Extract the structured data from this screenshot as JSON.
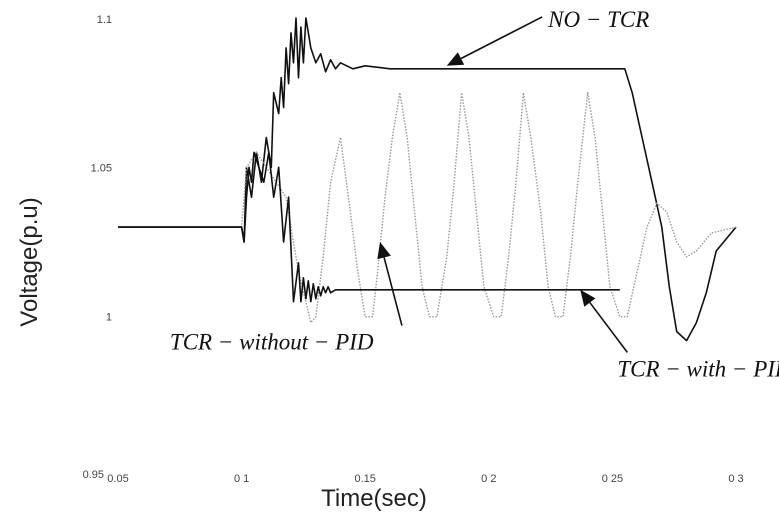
{
  "chart_data": {
    "type": "line",
    "title": "",
    "xlabel": "Time(sec)",
    "ylabel": "Voltage(p.u)",
    "xlim": [
      0.05,
      0.3
    ],
    "ylim": [
      0.95,
      1.1
    ],
    "grid": false,
    "legend": "none",
    "x_ticks": [
      {
        "value": 0.05,
        "label": "0.05"
      },
      {
        "value": 0.1,
        "label": "0 1"
      },
      {
        "value": 0.15,
        "label": "0.15"
      },
      {
        "value": 0.2,
        "label": "0 2"
      },
      {
        "value": 0.25,
        "label": "0 25"
      },
      {
        "value": 0.3,
        "label": "0 3"
      }
    ],
    "y_ticks": [
      {
        "value": 0.95,
        "label": "0.95"
      },
      {
        "value": 1.0,
        "label": "1"
      },
      {
        "value": 1.05,
        "label": "1.05"
      },
      {
        "value": 1.1,
        "label": "1.1"
      }
    ],
    "series": [
      {
        "color": "#111111",
        "style": "solid",
        "x": [
          0.05,
          0.1,
          0.101,
          0.102,
          0.104,
          0.106,
          0.108,
          0.11,
          0.112,
          0.113,
          0.115,
          0.116,
          0.117,
          0.118,
          0.119,
          0.12,
          0.121,
          0.122,
          0.123,
          0.124,
          0.125,
          0.126,
          0.128,
          0.13,
          0.132,
          0.134,
          0.136,
          0.138,
          0.14,
          0.145,
          0.15,
          0.16,
          0.17,
          0.18,
          0.19,
          0.2,
          0.21,
          0.22,
          0.23,
          0.24,
          0.25,
          0.255,
          0.258,
          0.262,
          0.266,
          0.27,
          0.273,
          0.276,
          0.28,
          0.284,
          0.288,
          0.292,
          0.3
        ],
        "y": [
          1.03,
          1.03,
          1.025,
          1.05,
          1.04,
          1.055,
          1.045,
          1.06,
          1.05,
          1.075,
          1.068,
          1.08,
          1.07,
          1.09,
          1.078,
          1.095,
          1.085,
          1.1,
          1.08,
          1.097,
          1.085,
          1.1,
          1.09,
          1.085,
          1.088,
          1.082,
          1.086,
          1.083,
          1.085,
          1.083,
          1.084,
          1.083,
          1.083,
          1.083,
          1.083,
          1.083,
          1.083,
          1.083,
          1.083,
          1.083,
          1.083,
          1.083,
          1.075,
          1.06,
          1.045,
          1.03,
          1.01,
          0.995,
          0.992,
          0.998,
          1.008,
          1.022,
          1.03
        ]
      },
      {
        "color": "#9a9a9a",
        "style": "dotted",
        "x": [
          0.05,
          0.1,
          0.102,
          0.106,
          0.11,
          0.114,
          0.118,
          0.12,
          0.123,
          0.126,
          0.128,
          0.13,
          0.133,
          0.136,
          0.14,
          0.144,
          0.147,
          0.15,
          0.153,
          0.155,
          0.158,
          0.161,
          0.164,
          0.167,
          0.17,
          0.173,
          0.176,
          0.179,
          0.183,
          0.186,
          0.189,
          0.192,
          0.195,
          0.198,
          0.202,
          0.205,
          0.208,
          0.211,
          0.214,
          0.217,
          0.221,
          0.224,
          0.227,
          0.23,
          0.233,
          0.236,
          0.24,
          0.243,
          0.246,
          0.249,
          0.253,
          0.256,
          0.26,
          0.264,
          0.268,
          0.272,
          0.276,
          0.28,
          0.284,
          0.29,
          0.3
        ],
        "y": [
          1.03,
          1.03,
          1.05,
          1.055,
          1.05,
          1.045,
          1.04,
          1.03,
          1.015,
          1.005,
          0.998,
          1.0,
          1.02,
          1.045,
          1.06,
          1.035,
          1.015,
          1.0,
          1.0,
          1.015,
          1.04,
          1.06,
          1.075,
          1.06,
          1.035,
          1.01,
          1.0,
          1.0,
          1.02,
          1.045,
          1.075,
          1.06,
          1.035,
          1.01,
          1.0,
          1.0,
          1.02,
          1.045,
          1.075,
          1.06,
          1.035,
          1.01,
          1.0,
          1.0,
          1.02,
          1.045,
          1.075,
          1.06,
          1.035,
          1.01,
          1.0,
          1.0,
          1.015,
          1.03,
          1.038,
          1.035,
          1.025,
          1.02,
          1.022,
          1.028,
          1.03
        ]
      },
      {
        "color": "#111111",
        "style": "solid",
        "x": [
          0.05,
          0.1,
          0.101,
          0.102,
          0.103,
          0.104,
          0.105,
          0.107,
          0.109,
          0.111,
          0.113,
          0.115,
          0.117,
          0.119,
          0.121,
          0.123,
          0.124,
          0.125,
          0.126,
          0.127,
          0.128,
          0.129,
          0.13,
          0.131,
          0.132,
          0.133,
          0.134,
          0.135,
          0.136,
          0.138,
          0.14,
          0.145,
          0.15,
          0.16,
          0.17,
          0.18,
          0.19,
          0.2,
          0.21,
          0.22,
          0.23,
          0.24,
          0.25,
          0.253
        ],
        "y": [
          1.03,
          1.03,
          1.025,
          1.04,
          1.05,
          1.045,
          1.055,
          1.05,
          1.045,
          1.055,
          1.04,
          1.05,
          1.025,
          1.04,
          1.005,
          1.018,
          1.005,
          1.013,
          1.006,
          1.012,
          1.005,
          1.011,
          1.006,
          1.01,
          1.007,
          1.01,
          1.008,
          1.01,
          1.008,
          1.009,
          1.009,
          1.009,
          1.009,
          1.009,
          1.009,
          1.009,
          1.009,
          1.009,
          1.009,
          1.009,
          1.009,
          1.009,
          1.009,
          1.009
        ]
      }
    ],
    "annotations": [
      {
        "text": "NO  − TCR",
        "x": 0.224,
        "y": 1.097,
        "arrow_to": [
          0.183,
          1.084
        ]
      },
      {
        "text": "TCR  − without  − PID",
        "x": 0.071,
        "y": 0.989,
        "arrow_to": [
          0.156,
          1.025
        ]
      },
      {
        "text": "TCR  − with  − PID",
        "x": 0.252,
        "y": 0.98,
        "arrow_to": [
          0.237,
          1.009
        ]
      }
    ]
  }
}
